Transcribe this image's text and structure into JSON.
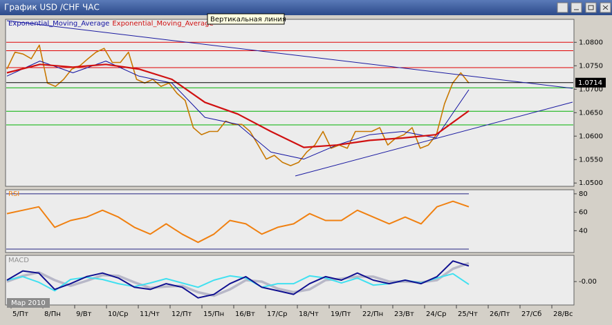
{
  "window": {
    "title": "График USD /CHF  ЧАС"
  },
  "tooltip": "Вертикальная линия",
  "period_label": "Мар 2010",
  "x_axis": {
    "labels": [
      "5/Пт",
      "8/Пн",
      "9/Вт",
      "10/Ср",
      "11/Чт",
      "12/Пт",
      "15/Пн",
      "16/Вт",
      "17/Ср",
      "18/Чт",
      "19/Пт",
      "22/Пн",
      "23/Вт",
      "24/Ср",
      "25/Чт",
      "26/Пт",
      "27/Сб",
      "28/Вс"
    ]
  },
  "chart_data": [
    {
      "type": "line",
      "series": [
        {
          "color": "#c87800",
          "values": [
            1.0743,
            1.0779,
            1.0775,
            1.0765,
            1.0794,
            1.0713,
            1.0706,
            1.0721,
            1.0743,
            1.075,
            1.0765,
            1.0779,
            1.0787,
            1.0757,
            1.0757,
            1.0779,
            1.0721,
            1.0713,
            1.0721,
            1.0706,
            1.0713,
            1.0691,
            1.0676,
            1.0618,
            1.0603,
            1.061,
            1.061,
            1.0632,
            1.0625,
            1.0625,
            1.061,
            1.0581,
            1.0551,
            1.0559,
            1.0544,
            1.0537,
            1.0544,
            1.0566,
            1.0581,
            1.061,
            1.0574,
            1.0581,
            1.0574,
            1.061,
            1.061,
            1.061,
            1.0618,
            1.0581,
            1.0596,
            1.0603,
            1.0618,
            1.0574,
            1.0581,
            1.0603,
            1.0669,
            1.0713,
            1.0735,
            1.0713
          ]
        },
        {
          "name": "Exponential_Moving_Average",
          "color": "#1010a0",
          "values": [
            1.0728,
            1.076,
            1.0735,
            1.076,
            1.0728,
            1.0713,
            1.064,
            1.0625,
            1.0566,
            1.0551,
            1.0581,
            1.0603,
            1.061,
            1.0596,
            1.0699
          ]
        },
        {
          "name": "Exponential_Moving_Average",
          "color": "#d01010",
          "values": [
            1.0735,
            1.0753,
            1.0747,
            1.0753,
            1.0743,
            1.0721,
            1.0672,
            1.0647,
            1.061,
            1.0576,
            1.0581,
            1.0591,
            1.0596,
            1.0603,
            1.0654
          ]
        }
      ],
      "ylim": [
        1.0493,
        1.0849
      ],
      "yticks": [
        {
          "value": 1.05,
          "label": "1.0500"
        },
        {
          "value": 1.055,
          "label": "1.0550"
        },
        {
          "value": 1.06,
          "label": "1.0600"
        },
        {
          "value": 1.065,
          "label": "1.0650"
        },
        {
          "value": 1.07,
          "label": "1.0700"
        },
        {
          "value": 1.075,
          "label": "1.0750"
        },
        {
          "value": 1.08,
          "label": "1.0800"
        }
      ],
      "levels": [
        {
          "color": "#e00000",
          "values": [
            1.08,
            1.0782,
            1.0746
          ]
        },
        {
          "color": "#00b000",
          "values": [
            1.0703,
            1.0653,
            1.0624
          ]
        }
      ],
      "current_price": 1.0714
    },
    {
      "type": "line",
      "series": [
        {
          "name": "RSI",
          "color": "#f08010",
          "values": [
            58.5,
            62.2,
            65.9,
            43.7,
            51.1,
            54.8,
            62.2,
            54.8,
            43.7,
            36.3,
            47.4,
            36.3,
            27.4,
            36.3,
            51.1,
            47.4,
            36.3,
            43.7,
            47.4,
            58.5,
            51.1,
            51.1,
            62.2,
            54.8,
            47.4,
            54.8,
            47.4,
            65.9,
            71.9,
            65.9
          ]
        }
      ],
      "ylim": [
        16.3,
        84.4
      ],
      "yticks": [
        40,
        60,
        80
      ],
      "levels": [
        {
          "color": "#202080",
          "values": [
            20,
            80
          ]
        }
      ]
    },
    {
      "type": "line",
      "title": "MACD",
      "series": [
        {
          "color": "#b8b8c8",
          "values": [
            0.0,
            0.0008,
            0.0013,
            0.0002,
            -0.0006,
            0.0001,
            0.0009,
            0.0008,
            -0.0001,
            -0.0009,
            -0.0007,
            -0.0006,
            -0.0015,
            -0.002,
            -0.0011,
            0.0002,
            0.0,
            -0.001,
            -0.0015,
            -0.0011,
            0.0002,
            0.0004,
            0.0007,
            0.0007,
            0.0,
            0.0,
            -0.0001,
            0.0002,
            0.0018,
            0.0026
          ]
        },
        {
          "color": "#40e0f0",
          "values": [
            0.0002,
            0.0007,
            -0.0001,
            -0.0013,
            0.0003,
            0.0006,
            0.0003,
            -0.0003,
            -0.0007,
            -0.0002,
            0.0004,
            -0.0002,
            -0.0008,
            0.0002,
            0.0008,
            0.0005,
            -0.0008,
            -0.0003,
            -0.0003,
            0.0008,
            0.0005,
            -0.0002,
            0.0005,
            -0.0005,
            -0.0003,
            0.0002,
            -0.0002,
            0.0005,
            0.0011,
            -0.0004
          ]
        },
        {
          "color": "#101090",
          "values": [
            0.0002,
            0.0015,
            0.0012,
            -0.0011,
            -0.0003,
            0.0007,
            0.0012,
            0.0005,
            -0.0008,
            -0.0011,
            -0.0003,
            -0.0008,
            -0.0023,
            -0.0018,
            -0.0003,
            0.0007,
            -0.0008,
            -0.0013,
            -0.0018,
            -0.0003,
            0.0007,
            0.0002,
            0.0012,
            0.0002,
            -0.0003,
            0.0002,
            -0.0003,
            0.0007,
            0.0029,
            0.0022
          ]
        }
      ],
      "ylim": [
        -0.0033,
        0.0037
      ],
      "yticks": [
        {
          "value": 0,
          "label": "-0.00"
        }
      ]
    }
  ]
}
